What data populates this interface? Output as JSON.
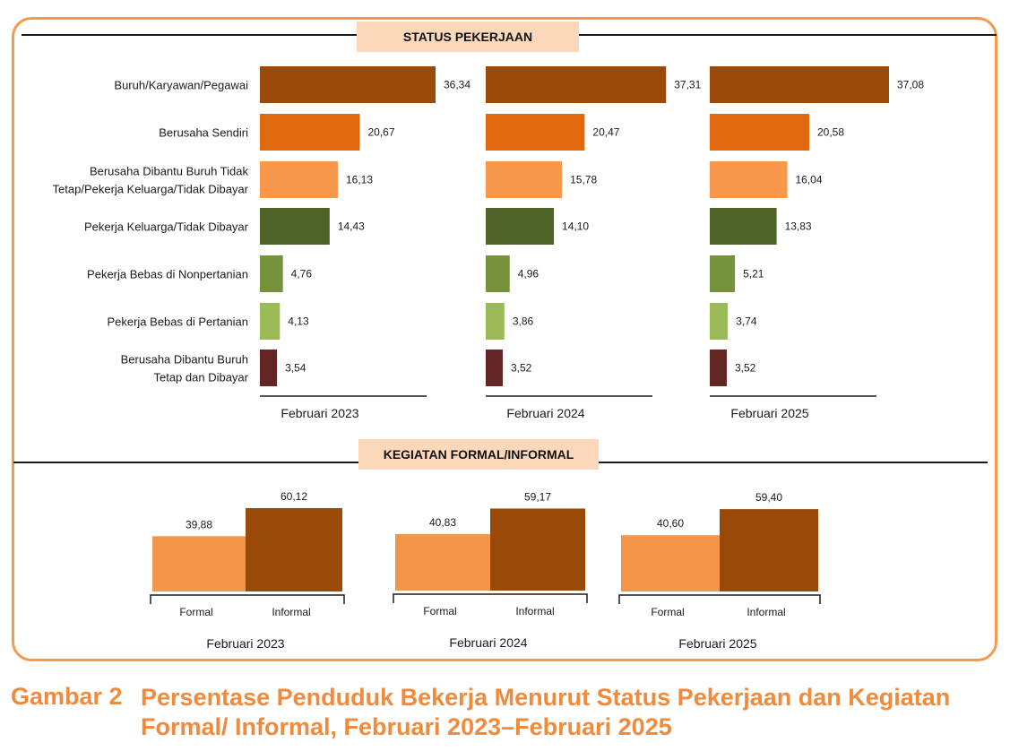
{
  "sections": {
    "status_title": "STATUS PEKERJAAN",
    "formal_title": "KEGIATAN FORMAL/INFORMAL"
  },
  "caption": {
    "label": "Gambar 2",
    "text": "Persentase Penduduk Bekerja Menurut Status Pekerjaan dan Kegiatan Formal/ Informal, Februari 2023–Februari 2025"
  },
  "colors": {
    "frame": "#f39a4e",
    "caption": "#f08a3c",
    "title_bg": "#fbd8ba",
    "formal": "#f4964a",
    "informal": "#9a4a08"
  },
  "chart_data": [
    {
      "type": "bar",
      "orientation": "horizontal",
      "title": "STATUS PEKERJAAN",
      "categories": [
        "Buruh/Karyawan/Pegawai",
        "Berusaha Sendiri",
        "Berusaha Dibantu Buruh Tidak Tetap/Pekerja Keluarga/Tidak Dibayar",
        "Pekerja Keluarga/Tidak Dibayar",
        "Pekerja Bebas di Nonpertanian",
        "Pekerja Bebas di Pertanian",
        "Berusaha Dibantu Buruh Tetap dan Dibayar"
      ],
      "category_lines": [
        [
          "Buruh/Karyawan/Pegawai"
        ],
        [
          "Berusaha Sendiri"
        ],
        [
          "Berusaha Dibantu Buruh Tidak",
          "Tetap/Pekerja Keluarga/Tidak Dibayar"
        ],
        [
          "Pekerja Keluarga/Tidak Dibayar"
        ],
        [
          "Pekerja Bebas di Nonpertanian"
        ],
        [
          "Pekerja Bebas di Pertanian"
        ],
        [
          "Berusaha Dibantu Buruh",
          "Tetap dan Dibayar"
        ]
      ],
      "category_colors": [
        "#9a4a08",
        "#e0690f",
        "#f7984d",
        "#4f6228",
        "#76923c",
        "#9bbb59",
        "#632523"
      ],
      "series": [
        {
          "name": "Februari 2023",
          "values": [
            36.34,
            20.67,
            16.13,
            14.43,
            4.76,
            4.13,
            3.54
          ],
          "labels": [
            "36,34",
            "20,67",
            "16,13",
            "14,43",
            "4,76",
            "4,13",
            "3,54"
          ]
        },
        {
          "name": "Februari 2024",
          "values": [
            37.31,
            20.47,
            15.78,
            14.1,
            4.96,
            3.86,
            3.52
          ],
          "labels": [
            "37,31",
            "20,47",
            "15,78",
            "14,10",
            "4,96",
            "3,86",
            "3,52"
          ]
        },
        {
          "name": "Februari 2025",
          "values": [
            37.08,
            20.58,
            16.04,
            13.83,
            5.21,
            3.74,
            3.52
          ],
          "labels": [
            "37,08",
            "20,58",
            "16,04",
            "13,83",
            "5,21",
            "3,74",
            "3,52"
          ]
        }
      ],
      "xlim": [
        0,
        37.31
      ],
      "grid": false,
      "legend": "none"
    },
    {
      "type": "bar",
      "title": "KEGIATAN FORMAL/INFORMAL",
      "categories": [
        "Formal",
        "Informal"
      ],
      "category_colors": [
        "#f4964a",
        "#9a4a08"
      ],
      "series": [
        {
          "name": "Februari 2023",
          "values": [
            39.88,
            60.12
          ],
          "labels": [
            "39,88",
            "60,12"
          ]
        },
        {
          "name": "Februari 2024",
          "values": [
            40.83,
            59.17
          ],
          "labels": [
            "40,83",
            "59,17"
          ]
        },
        {
          "name": "Februari 2025",
          "values": [
            40.6,
            59.4
          ],
          "labels": [
            "40,60",
            "59,40"
          ]
        }
      ],
      "ylim": [
        0,
        60.12
      ],
      "grid": false,
      "legend": "none"
    }
  ]
}
